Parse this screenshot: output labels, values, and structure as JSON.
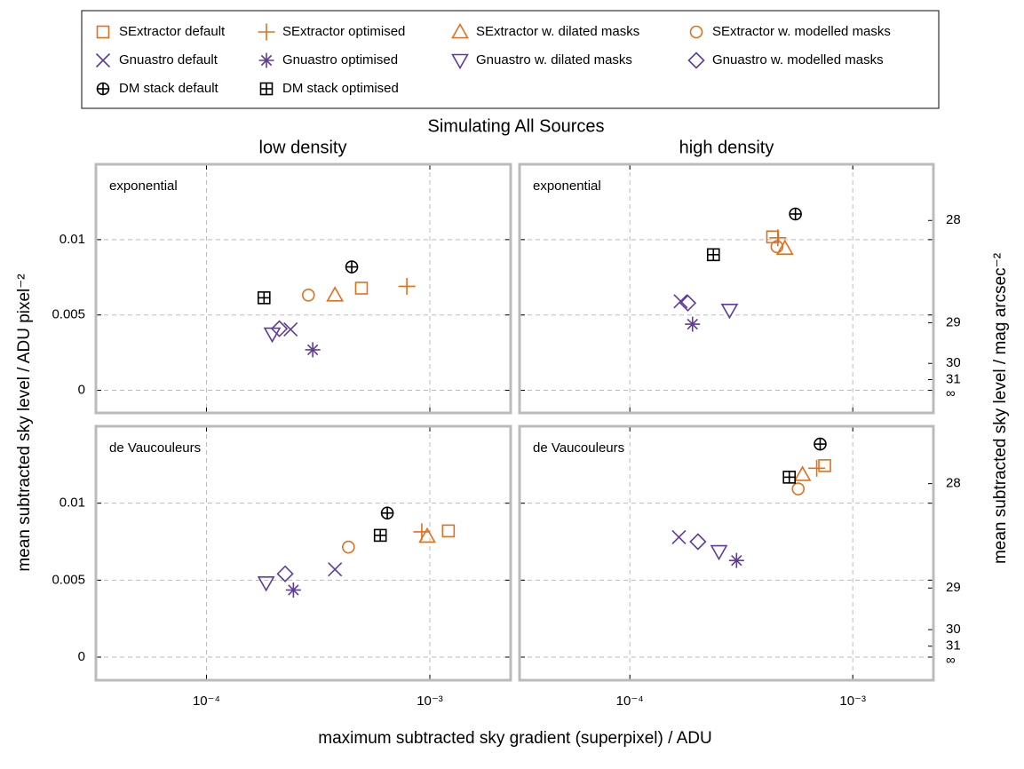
{
  "title": "Simulating All Sources",
  "columns": [
    "low density",
    "high density"
  ],
  "xlabel": "maximum subtracted sky gradient (superpixel) / ADU",
  "ylabel": "mean subtracted sky level / ADU pixel⁻²",
  "y2label": "mean subtracted sky level / mag arcsec⁻²",
  "legend": [
    {
      "name": "SExtractor default",
      "color": "#e1701e",
      "marker": "square"
    },
    {
      "name": "SExtractor optimised",
      "color": "#e1701e",
      "marker": "plus"
    },
    {
      "name": "SExtractor w. dilated masks",
      "color": "#e1701e",
      "marker": "triangle-up"
    },
    {
      "name": "SExtractor w. modelled masks",
      "color": "#e1701e",
      "marker": "circle"
    },
    {
      "name": "Gnuastro default",
      "color": "#5e3c99",
      "marker": "x"
    },
    {
      "name": "Gnuastro optimised",
      "color": "#5e3c99",
      "marker": "asterisk"
    },
    {
      "name": "Gnuastro w. dilated masks",
      "color": "#5e3c99",
      "marker": "triangle-down"
    },
    {
      "name": "Gnuastro w. modelled masks",
      "color": "#5e3c99",
      "marker": "diamond"
    },
    {
      "name": "DM stack default",
      "color": "#000000",
      "marker": "circle-plus"
    },
    {
      "name": "DM stack optimised",
      "color": "#000000",
      "marker": "square-plus"
    }
  ],
  "axes": {
    "log_x": true,
    "grid": true,
    "xlim": [
      3.2e-05,
      0.0023
    ],
    "xticks": [
      {
        "value": 0.0001,
        "label": "10⁻⁴"
      },
      {
        "value": 0.001,
        "label": "10⁻³"
      }
    ],
    "ylim": [
      -0.0015,
      0.015
    ],
    "yticks": [
      0,
      0.005,
      0.01
    ],
    "y2ticks": [
      28,
      29,
      30,
      31
    ],
    "y2_infinity_label": "∞",
    "mag_zeropoint": 23.13
  },
  "chart_data": [
    {
      "type": "scatter",
      "label": "exponential",
      "series": [
        {
          "x": [
            0.000494
          ],
          "values": [
            0.00678
          ]
        },
        {
          "x": [
            0.000789
          ],
          "values": [
            0.0069
          ]
        },
        {
          "x": [
            0.000376
          ],
          "values": [
            0.00632
          ]
        },
        {
          "x": [
            0.000286
          ],
          "values": [
            0.00632
          ]
        },
        {
          "x": [
            0.000238
          ],
          "values": [
            0.00404
          ]
        },
        {
          "x": [
            0.000299
          ],
          "values": [
            0.00269
          ]
        },
        {
          "x": [
            0.000197
          ],
          "values": [
            0.00374
          ]
        },
        {
          "x": [
            0.000212
          ],
          "values": [
            0.00409
          ]
        },
        {
          "x": [
            0.000447
          ],
          "values": [
            0.00819
          ]
        },
        {
          "x": [
            0.000181
          ],
          "values": [
            0.00614
          ]
        }
      ]
    },
    {
      "type": "scatter",
      "label": "exponential",
      "series": [
        {
          "x": [
            0.000437
          ],
          "values": [
            0.01018
          ]
        },
        {
          "x": [
            0.000461
          ],
          "values": [
            0.01012
          ]
        },
        {
          "x": [
            0.000496
          ],
          "values": [
            0.00942
          ]
        },
        {
          "x": [
            0.000457
          ],
          "values": [
            0.00953
          ]
        },
        {
          "x": [
            0.000169
          ],
          "values": [
            0.00591
          ]
        },
        {
          "x": [
            0.000191
          ],
          "values": [
            0.00439
          ]
        },
        {
          "x": [
            0.00028
          ],
          "values": [
            0.00532
          ]
        },
        {
          "x": [
            0.000182
          ],
          "values": [
            0.00579
          ]
        },
        {
          "x": [
            0.000553
          ],
          "values": [
            0.0117
          ]
        },
        {
          "x": [
            0.000237
          ],
          "values": [
            0.009
          ]
        }
      ]
    },
    {
      "type": "scatter",
      "label": "de Vaucouleurs",
      "series": [
        {
          "x": [
            0.00121
          ],
          "values": [
            0.0082
          ]
        },
        {
          "x": [
            0.00092
          ],
          "values": [
            0.00814
          ]
        },
        {
          "x": [
            0.000973
          ],
          "values": [
            0.00785
          ]
        },
        {
          "x": [
            0.000432
          ],
          "values": [
            0.00715
          ]
        },
        {
          "x": [
            0.000376
          ],
          "values": [
            0.0057
          ]
        },
        {
          "x": [
            0.000245
          ],
          "values": [
            0.00436
          ]
        },
        {
          "x": [
            0.000185
          ],
          "values": [
            0.00483
          ]
        },
        {
          "x": [
            0.000225
          ],
          "values": [
            0.00541
          ]
        },
        {
          "x": [
            0.000645
          ],
          "values": [
            0.00936
          ]
        },
        {
          "x": [
            0.0006
          ],
          "values": [
            0.00791
          ]
        }
      ]
    },
    {
      "type": "scatter",
      "label": "de Vaucouleurs",
      "series": [
        {
          "x": [
            0.000748
          ],
          "values": [
            0.01244
          ]
        },
        {
          "x": [
            0.000689
          ],
          "values": [
            0.01227
          ]
        },
        {
          "x": [
            0.000595
          ],
          "values": [
            0.01186
          ]
        },
        {
          "x": [
            0.000569
          ],
          "values": [
            0.01093
          ]
        },
        {
          "x": [
            0.000166
          ],
          "values": [
            0.00779
          ]
        },
        {
          "x": [
            0.000301
          ],
          "values": [
            0.00628
          ]
        },
        {
          "x": [
            0.000251
          ],
          "values": [
            0.00686
          ]
        },
        {
          "x": [
            0.000202
          ],
          "values": [
            0.0075
          ]
        },
        {
          "x": [
            0.000714
          ],
          "values": [
            0.01384
          ]
        },
        {
          "x": [
            0.000519
          ],
          "values": [
            0.01169
          ]
        }
      ]
    }
  ]
}
